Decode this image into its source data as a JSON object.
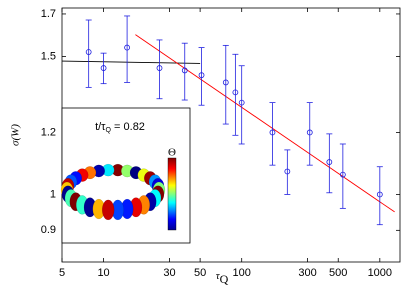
{
  "chart_data": {
    "type": "scatter",
    "log_x": true,
    "log_y": true,
    "xlabel": {
      "symbol": "τ",
      "subscript": "Q"
    },
    "ylabel": "σ(W)",
    "xlim": [
      5,
      1400
    ],
    "ylim": [
      0.82,
      1.73
    ],
    "xticks": [
      5,
      10,
      30,
      50,
      100,
      300,
      500,
      1000
    ],
    "yticks": [
      0.9,
      1,
      1.2,
      1.5,
      1.7
    ],
    "series": [
      {
        "color": "#2020e0",
        "x": [
          7.8,
          10,
          14.8,
          25.4,
          38.7,
          51.2,
          76.7,
          90,
          100,
          167,
          214,
          311,
          431,
          540,
          1000
        ],
        "values": [
          1.52,
          1.45,
          1.54,
          1.45,
          1.44,
          1.42,
          1.39,
          1.35,
          1.31,
          1.2,
          1.07,
          1.2,
          1.1,
          1.06,
          1.0
        ],
        "errors": [
          0.15,
          0.065,
          0.15,
          0.125,
          0.12,
          0.12,
          0.16,
          0.16,
          0.15,
          0.11,
          0.07,
          0.11,
          0.095,
          0.1,
          0.085
        ]
      }
    ],
    "fits": [
      {
        "color": "#000000",
        "x": [
          5,
          50
        ],
        "values": [
          1.48,
          1.47
        ]
      },
      {
        "color": "#ff0000",
        "x": [
          17,
          1280
        ],
        "values": [
          1.6,
          0.95
        ]
      }
    ],
    "inset": {
      "title": {
        "prefix": "t/τ",
        "subscript": "Q",
        "suffix": " = 0.82"
      },
      "colorbar_label": "Θ"
    }
  }
}
